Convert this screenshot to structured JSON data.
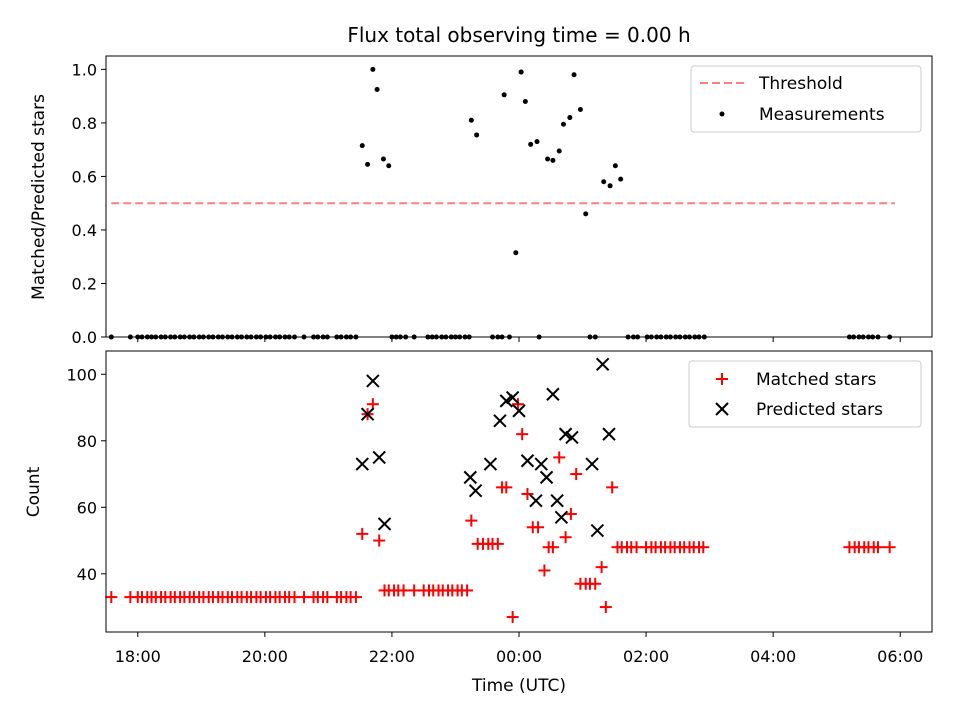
{
  "title": "Flux total observing time = 0.00 h",
  "chart_data": [
    {
      "type": "scatter",
      "ylabel": "Matched/Predicted stars",
      "ylim": [
        0,
        1.05
      ],
      "xlim": [
        "17:30",
        "06:30"
      ],
      "yticks": [
        "0.0",
        "0.2",
        "0.4",
        "0.6",
        "0.8",
        "1.0"
      ],
      "ytick_values": [
        0,
        0.2,
        0.4,
        0.6,
        0.8,
        1.0
      ],
      "legend_position": "top-right",
      "threshold": {
        "name": "Threshold",
        "value": 0.5,
        "x_start": "17:35",
        "x_end": "05:55",
        "color": "#ff7f7f"
      },
      "series": [
        {
          "name": "Measurements",
          "marker": "dot",
          "color": "#000000",
          "points": [
            [
              "17:35",
              0
            ],
            [
              "17:53",
              0
            ],
            [
              "18:00",
              0
            ],
            [
              "18:04",
              0
            ],
            [
              "18:09",
              0
            ],
            [
              "18:13",
              0
            ],
            [
              "18:17",
              0
            ],
            [
              "18:22",
              0
            ],
            [
              "18:26",
              0
            ],
            [
              "18:31",
              0
            ],
            [
              "18:35",
              0
            ],
            [
              "18:40",
              0
            ],
            [
              "18:44",
              0
            ],
            [
              "18:49",
              0
            ],
            [
              "18:53",
              0
            ],
            [
              "18:58",
              0
            ],
            [
              "19:02",
              0
            ],
            [
              "19:07",
              0
            ],
            [
              "19:11",
              0
            ],
            [
              "19:16",
              0
            ],
            [
              "19:20",
              0
            ],
            [
              "19:25",
              0
            ],
            [
              "19:29",
              0
            ],
            [
              "19:34",
              0
            ],
            [
              "19:38",
              0
            ],
            [
              "19:43",
              0
            ],
            [
              "19:47",
              0
            ],
            [
              "19:52",
              0
            ],
            [
              "19:56",
              0
            ],
            [
              "20:01",
              0
            ],
            [
              "20:05",
              0
            ],
            [
              "20:10",
              0
            ],
            [
              "20:14",
              0
            ],
            [
              "20:19",
              0
            ],
            [
              "20:23",
              0
            ],
            [
              "20:28",
              0
            ],
            [
              "20:37",
              0
            ],
            [
              "20:46",
              0
            ],
            [
              "20:50",
              0
            ],
            [
              "20:55",
              0
            ],
            [
              "20:59",
              0
            ],
            [
              "21:08",
              0
            ],
            [
              "21:12",
              0
            ],
            [
              "21:17",
              0
            ],
            [
              "21:21",
              0
            ],
            [
              "21:26",
              0
            ],
            [
              "21:32",
              0.715
            ],
            [
              "21:37",
              0.645
            ],
            [
              "21:42",
              1.0
            ],
            [
              "21:46",
              0.925
            ],
            [
              "21:52",
              0.665
            ],
            [
              "21:57",
              0.64
            ],
            [
              "22:00",
              0
            ],
            [
              "22:04",
              0
            ],
            [
              "22:08",
              0
            ],
            [
              "22:13",
              0
            ],
            [
              "22:21",
              0
            ],
            [
              "22:34",
              0
            ],
            [
              "22:38",
              0
            ],
            [
              "22:42",
              0
            ],
            [
              "22:47",
              0
            ],
            [
              "22:51",
              0
            ],
            [
              "22:56",
              0
            ],
            [
              "23:00",
              0
            ],
            [
              "23:04",
              0
            ],
            [
              "23:09",
              0
            ],
            [
              "23:13",
              0
            ],
            [
              "23:15",
              0.81
            ],
            [
              "23:20",
              0.755
            ],
            [
              "23:35",
              0
            ],
            [
              "23:40",
              0
            ],
            [
              "23:44",
              0
            ],
            [
              "23:46",
              0.905
            ],
            [
              "23:51",
              0
            ],
            [
              "23:57",
              0.315
            ],
            [
              "24:02",
              0.99
            ],
            [
              "24:06",
              0.88
            ],
            [
              "24:11",
              0.72
            ],
            [
              "24:17",
              0.73
            ],
            [
              "24:19",
              0
            ],
            [
              "24:27",
              0.665
            ],
            [
              "24:32",
              0.66
            ],
            [
              "24:38",
              0.695
            ],
            [
              "24:42",
              0.795
            ],
            [
              "24:48",
              0.82
            ],
            [
              "24:52",
              0.98
            ],
            [
              "24:58",
              0.85
            ],
            [
              "25:03",
              0.46
            ],
            [
              "25:07",
              0
            ],
            [
              "25:12",
              0
            ],
            [
              "25:20",
              0.58
            ],
            [
              "25:26",
              0.565
            ],
            [
              "25:31",
              0.64
            ],
            [
              "25:36",
              0.59
            ],
            [
              "25:43",
              0
            ],
            [
              "25:48",
              0
            ],
            [
              "25:52",
              0
            ],
            [
              "26:01",
              0
            ],
            [
              "26:05",
              0
            ],
            [
              "26:10",
              0
            ],
            [
              "26:14",
              0
            ],
            [
              "26:19",
              0
            ],
            [
              "26:23",
              0
            ],
            [
              "26:28",
              0
            ],
            [
              "26:32",
              0
            ],
            [
              "26:37",
              0
            ],
            [
              "26:41",
              0
            ],
            [
              "26:46",
              0
            ],
            [
              "26:50",
              0
            ],
            [
              "26:55",
              0
            ],
            [
              "29:12",
              0
            ],
            [
              "29:16",
              0
            ],
            [
              "29:21",
              0
            ],
            [
              "29:25",
              0
            ],
            [
              "29:30",
              0
            ],
            [
              "29:34",
              0
            ],
            [
              "29:39",
              0
            ],
            [
              "29:50",
              0
            ]
          ]
        }
      ]
    },
    {
      "type": "scatter",
      "xlabel": "Time (UTC)",
      "ylabel": "Count",
      "ylim": [
        22.5,
        107
      ],
      "xlim": [
        "17:30",
        "06:30"
      ],
      "xticks": [
        "18:00",
        "20:00",
        "22:00",
        "00:00",
        "02:00",
        "04:00",
        "06:00"
      ],
      "yticks": [
        "40",
        "60",
        "80",
        "100"
      ],
      "ytick_values": [
        40,
        60,
        80,
        100
      ],
      "legend_position": "top-right",
      "series": [
        {
          "name": "Matched stars",
          "marker": "plus",
          "color": "#ff0000",
          "points": [
            [
              "17:35",
              33
            ],
            [
              "17:53",
              33
            ],
            [
              "18:00",
              33
            ],
            [
              "18:04",
              33
            ],
            [
              "18:09",
              33
            ],
            [
              "18:13",
              33
            ],
            [
              "18:17",
              33
            ],
            [
              "18:22",
              33
            ],
            [
              "18:26",
              33
            ],
            [
              "18:31",
              33
            ],
            [
              "18:35",
              33
            ],
            [
              "18:40",
              33
            ],
            [
              "18:44",
              33
            ],
            [
              "18:49",
              33
            ],
            [
              "18:53",
              33
            ],
            [
              "18:58",
              33
            ],
            [
              "19:02",
              33
            ],
            [
              "19:07",
              33
            ],
            [
              "19:11",
              33
            ],
            [
              "19:16",
              33
            ],
            [
              "19:20",
              33
            ],
            [
              "19:25",
              33
            ],
            [
              "19:29",
              33
            ],
            [
              "19:34",
              33
            ],
            [
              "19:38",
              33
            ],
            [
              "19:43",
              33
            ],
            [
              "19:47",
              33
            ],
            [
              "19:52",
              33
            ],
            [
              "19:56",
              33
            ],
            [
              "20:01",
              33
            ],
            [
              "20:05",
              33
            ],
            [
              "20:10",
              33
            ],
            [
              "20:14",
              33
            ],
            [
              "20:19",
              33
            ],
            [
              "20:23",
              33
            ],
            [
              "20:28",
              33
            ],
            [
              "20:37",
              33
            ],
            [
              "20:46",
              33
            ],
            [
              "20:50",
              33
            ],
            [
              "20:55",
              33
            ],
            [
              "20:59",
              33
            ],
            [
              "21:08",
              33
            ],
            [
              "21:12",
              33
            ],
            [
              "21:17",
              33
            ],
            [
              "21:21",
              33
            ],
            [
              "21:26",
              33
            ],
            [
              "21:32",
              52
            ],
            [
              "21:37",
              88
            ],
            [
              "21:42",
              91
            ],
            [
              "21:48",
              50
            ],
            [
              "21:53",
              35
            ],
            [
              "21:57",
              35
            ],
            [
              "22:02",
              35
            ],
            [
              "22:06",
              35
            ],
            [
              "22:11",
              35
            ],
            [
              "22:21",
              35
            ],
            [
              "22:30",
              35
            ],
            [
              "22:35",
              35
            ],
            [
              "22:39",
              35
            ],
            [
              "22:44",
              35
            ],
            [
              "22:48",
              35
            ],
            [
              "22:53",
              35
            ],
            [
              "22:57",
              35
            ],
            [
              "23:02",
              35
            ],
            [
              "23:06",
              35
            ],
            [
              "23:11",
              35
            ],
            [
              "23:15",
              56
            ],
            [
              "23:21",
              49
            ],
            [
              "23:26",
              49
            ],
            [
              "23:31",
              49
            ],
            [
              "23:35",
              49
            ],
            [
              "23:40",
              49
            ],
            [
              "23:44",
              66
            ],
            [
              "23:48",
              66
            ],
            [
              "23:54",
              27
            ],
            [
              "23:59",
              91
            ],
            [
              "24:03",
              82
            ],
            [
              "24:08",
              64
            ],
            [
              "24:13",
              54
            ],
            [
              "24:18",
              54
            ],
            [
              "24:24",
              41
            ],
            [
              "24:28",
              48
            ],
            [
              "24:32",
              48
            ],
            [
              "24:38",
              75
            ],
            [
              "24:44",
              51
            ],
            [
              "24:49",
              58
            ],
            [
              "24:54",
              70
            ],
            [
              "24:58",
              37
            ],
            [
              "25:03",
              37
            ],
            [
              "25:07",
              37
            ],
            [
              "25:12",
              37
            ],
            [
              "25:18",
              42
            ],
            [
              "25:22",
              30
            ],
            [
              "25:28",
              66
            ],
            [
              "25:33",
              48
            ],
            [
              "25:37",
              48
            ],
            [
              "25:42",
              48
            ],
            [
              "25:46",
              48
            ],
            [
              "25:51",
              48
            ],
            [
              "26:00",
              48
            ],
            [
              "26:05",
              48
            ],
            [
              "26:09",
              48
            ],
            [
              "26:14",
              48
            ],
            [
              "26:18",
              48
            ],
            [
              "26:23",
              48
            ],
            [
              "26:27",
              48
            ],
            [
              "26:32",
              48
            ],
            [
              "26:36",
              48
            ],
            [
              "26:41",
              48
            ],
            [
              "26:45",
              48
            ],
            [
              "26:50",
              48
            ],
            [
              "26:54",
              48
            ],
            [
              "29:12",
              48
            ],
            [
              "29:17",
              48
            ],
            [
              "29:21",
              48
            ],
            [
              "29:26",
              48
            ],
            [
              "29:30",
              48
            ],
            [
              "29:35",
              48
            ],
            [
              "29:39",
              48
            ],
            [
              "29:50",
              48
            ]
          ]
        },
        {
          "name": "Predicted stars",
          "marker": "x",
          "color": "#000000",
          "points": [
            [
              "21:32",
              73
            ],
            [
              "21:37",
              88
            ],
            [
              "21:42",
              98
            ],
            [
              "21:48",
              75
            ],
            [
              "21:53",
              55
            ],
            [
              "23:14",
              69
            ],
            [
              "23:19",
              65
            ],
            [
              "23:33",
              73
            ],
            [
              "23:42",
              86
            ],
            [
              "23:48",
              92
            ],
            [
              "23:54",
              93
            ],
            [
              "24:00",
              89
            ],
            [
              "24:08",
              74
            ],
            [
              "24:16",
              62
            ],
            [
              "24:21",
              73
            ],
            [
              "24:26",
              69
            ],
            [
              "24:32",
              94
            ],
            [
              "24:36",
              62
            ],
            [
              "24:40",
              57
            ],
            [
              "24:44",
              82
            ],
            [
              "24:50",
              81
            ],
            [
              "25:09",
              73
            ],
            [
              "25:14",
              53
            ],
            [
              "25:19",
              103
            ],
            [
              "25:25",
              82
            ]
          ]
        }
      ]
    }
  ]
}
